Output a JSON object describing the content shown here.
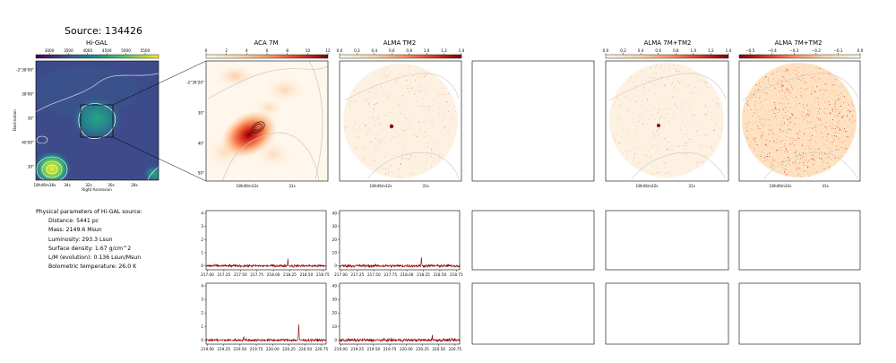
{
  "source_title": "Source: 134426",
  "panel_titles": {
    "higal": "Hi-GAL",
    "aca": "ACA 7M",
    "alma_tm2": "ALMA TM2",
    "alma_combined": "ALMA 7M+TM2",
    "alma_combined_2": "ALMA 7M+TM2"
  },
  "colorbars": {
    "higal": {
      "ticks": [
        "3000",
        "3500",
        "4000",
        "4500",
        "5000",
        "5500"
      ],
      "cmap": "viridis"
    },
    "aca": {
      "ticks": [
        "0",
        "2",
        "4",
        "6",
        "8",
        "10",
        "12"
      ],
      "cmap": "OrRd"
    },
    "alma_tm2": {
      "ticks": [
        "0.0",
        "0.2",
        "0.4",
        "0.6",
        "0.8",
        "1.0",
        "1.2",
        "1.4"
      ],
      "cmap": "OrRd"
    },
    "alma_combined": {
      "ticks": [
        "0.0",
        "0.2",
        "0.4",
        "0.6",
        "0.8",
        "1.0",
        "1.2",
        "1.4"
      ],
      "cmap": "OrRd"
    },
    "alma_combined_2": {
      "ticks": [
        "−0.5",
        "−0.4",
        "−0.3",
        "−0.2",
        "−0.1",
        "0.0"
      ],
      "cmap": "OrRd_r"
    }
  },
  "higal_axes": {
    "yticks": [
      "-2°38'00\"",
      "38'00\"",
      "30\"",
      "40'00\"",
      "30\""
    ],
    "xticks": [
      "18h46m36s",
      "34s",
      "32s",
      "30s",
      "28s"
    ],
    "xlabel": "Right Ascension",
    "ylabel": "Declination"
  },
  "aca_axes": {
    "yticks": [
      "-2°39'20\"",
      "30\"",
      "40\"",
      "50\""
    ],
    "xticks": [
      "18h46m32s",
      "31s"
    ]
  },
  "alma_xticks": [
    "18h46m32s",
    "31s"
  ],
  "params": {
    "heading": "Physical parameters of Hi-GAL source:",
    "lines": [
      "Distance: 5441 pc",
      "Mass: 2149.6 Msun",
      "Luminosity: 293.3 Lsun",
      "Surface density: 1.67 g/cm^2",
      "L/M (evolution): 0.136 Lsun/Msun",
      "Bolometric temperature: 26.0 K"
    ]
  },
  "chart_data": [
    {
      "type": "line",
      "panel": "spectrum-aca-upper",
      "x": [
        217.0,
        217.25,
        217.5,
        217.75,
        218.0,
        218.25,
        218.5,
        218.75
      ],
      "xticks": [
        "217.00",
        "217.25",
        "217.50",
        "217.75",
        "218.00",
        "218.25",
        "218.50",
        "218.75"
      ],
      "yticks": [
        "0",
        "1",
        "2",
        "3",
        "4"
      ],
      "ylim": [
        -0.3,
        4.2
      ],
      "xlim": [
        216.98,
        218.8
      ],
      "noise": 0.07,
      "peaks": [
        [
          218.22,
          0.55
        ]
      ],
      "color": "#8b0000"
    },
    {
      "type": "line",
      "panel": "spectrum-tm2-upper",
      "x": [
        217.0,
        217.25,
        217.5,
        217.75,
        218.0,
        218.25,
        218.5,
        218.75
      ],
      "xticks": [
        "217.00",
        "217.25",
        "217.50",
        "217.75",
        "218.00",
        "218.25",
        "218.50",
        "218.75"
      ],
      "yticks": [
        "0",
        "10",
        "20",
        "30",
        "40"
      ],
      "ylim": [
        -3,
        42
      ],
      "xlim": [
        216.98,
        218.8
      ],
      "noise": 0.8,
      "peaks": [
        [
          218.22,
          6
        ]
      ],
      "color": "#8b0000"
    },
    {
      "type": "line",
      "panel": "spectrum-aca-lower",
      "x": [
        219.0,
        219.25,
        219.5,
        219.75,
        220.0,
        220.25,
        220.5,
        220.75
      ],
      "xticks": [
        "219.00",
        "219.25",
        "219.50",
        "219.75",
        "220.00",
        "220.25",
        "220.50",
        "220.75"
      ],
      "yticks": [
        "0",
        "1",
        "2",
        "3",
        "4"
      ],
      "ylim": [
        -0.3,
        4.2
      ],
      "xlim": [
        218.98,
        220.82
      ],
      "noise": 0.07,
      "peaks": [
        [
          220.4,
          1.2
        ],
        [
          219.56,
          0.3
        ]
      ],
      "color": "#8b0000"
    },
    {
      "type": "line",
      "panel": "spectrum-tm2-lower",
      "x": [
        219.0,
        219.25,
        219.5,
        219.75,
        220.0,
        220.25,
        220.5,
        220.75
      ],
      "xticks": [
        "219.00",
        "219.25",
        "219.50",
        "219.75",
        "220.00",
        "220.25",
        "220.50",
        "220.75"
      ],
      "yticks": [
        "0",
        "10",
        "20",
        "30",
        "40"
      ],
      "ylim": [
        -3,
        42
      ],
      "xlim": [
        218.98,
        220.82
      ],
      "noise": 0.8,
      "peaks": [
        [
          220.4,
          4
        ]
      ],
      "color": "#8b0000"
    }
  ]
}
